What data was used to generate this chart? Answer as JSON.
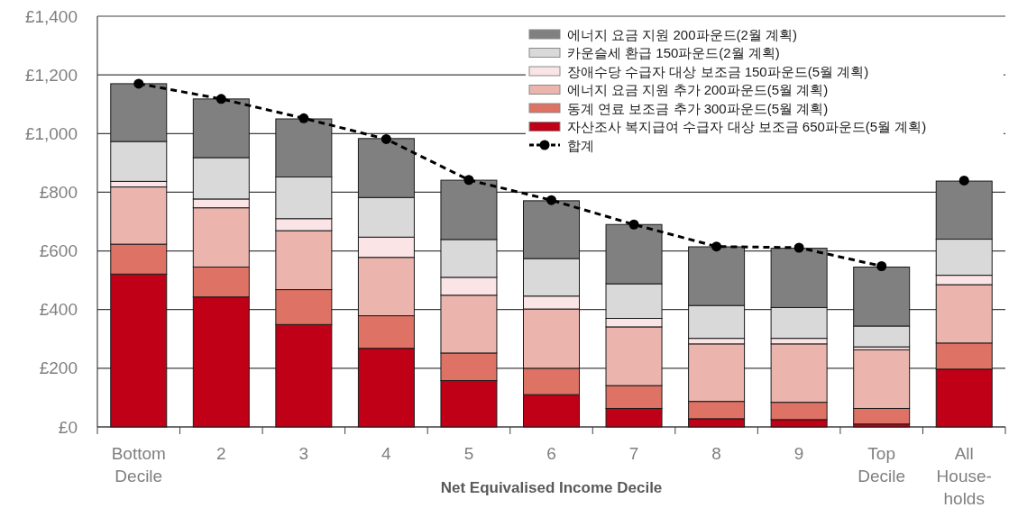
{
  "chart_data": {
    "type": "bar",
    "stacked": true,
    "xlabel": "Net Equivalised Income Decile",
    "categories": [
      "Bottom Decile",
      "2",
      "3",
      "4",
      "5",
      "6",
      "7",
      "8",
      "9",
      "Top Decile",
      "All House-holds"
    ],
    "ylim": [
      0,
      1400
    ],
    "yticks": [
      {
        "value": 0,
        "label": "£0"
      },
      {
        "value": 200,
        "label": "£200"
      },
      {
        "value": 400,
        "label": "£400"
      },
      {
        "value": 600,
        "label": "£600"
      },
      {
        "value": 800,
        "label": "£800"
      },
      {
        "value": 1000,
        "label": "£1,000"
      },
      {
        "value": 1200,
        "label": "£1,200"
      },
      {
        "value": 1400,
        "label": "£1,400"
      }
    ],
    "grid": "y",
    "legend": "top right",
    "marker": "circle",
    "line_style": "dashed",
    "series": [
      {
        "name": "자산조사 복지급여 수급자 대상 보조금 650파운드(5월 계획)",
        "color": "#c00016",
        "values": [
          521,
          443,
          349,
          268,
          158,
          110,
          63,
          28,
          25,
          10,
          197
        ]
      },
      {
        "name": "동계 연료 보조금 추가 300파운드(5월 계획)",
        "color": "#dd7265",
        "values": [
          102,
          102,
          119,
          111,
          94,
          90,
          78,
          59,
          59,
          53,
          89
        ]
      },
      {
        "name": "에너지 요금 지원 추가 200파운드(5월 계획)",
        "color": "#ebb5ae",
        "values": [
          195,
          202,
          201,
          199,
          197,
          202,
          200,
          196,
          199,
          200,
          199
        ]
      },
      {
        "name": "장애수당 수급자 대상 보조금 150파운드(5월 계획)",
        "color": "#fbe4e6",
        "values": [
          19,
          30,
          41,
          69,
          61,
          44,
          29,
          19,
          19,
          10,
          32
        ]
      },
      {
        "name": "카운슬세 환급 150파운드(2월 계획)",
        "color": "#d9d9d9",
        "values": [
          136,
          141,
          142,
          135,
          129,
          128,
          118,
          112,
          105,
          71,
          123
        ]
      },
      {
        "name": "에너지 요금 지원 200파운드(2월 계획)",
        "color": "#808080",
        "values": [
          197,
          200,
          198,
          201,
          202,
          197,
          202,
          200,
          202,
          201,
          198
        ]
      },
      {
        "name": "합계",
        "type": "line",
        "color": "#000000",
        "values": [
          1170,
          1118,
          1052,
          981,
          842,
          773,
          690,
          615,
          611,
          548,
          null
        ]
      },
      {
        "type": "scatter",
        "color": "#000000",
        "values": [
          null,
          null,
          null,
          null,
          null,
          null,
          null,
          null,
          null,
          null,
          840
        ]
      }
    ]
  }
}
